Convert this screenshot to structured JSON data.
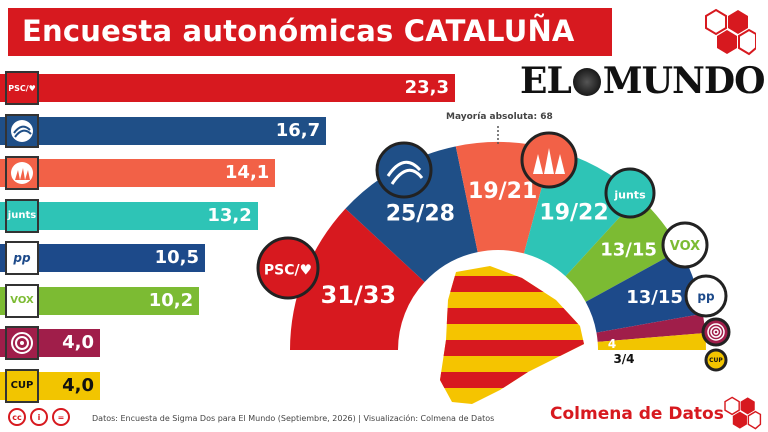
{
  "header": {
    "title": "Encuesta autonómicas CATALUÑA"
  },
  "publisher": {
    "name_left": "EL",
    "name_right": "MUNDO"
  },
  "chart_data": [
    {
      "type": "bar",
      "orientation": "horizontal",
      "categories": [
        "PSC",
        "ERC",
        "Comuns",
        "Junts",
        "PP",
        "VOX",
        "Aliança",
        "CUP"
      ],
      "series_logos": [
        "PSC/♥",
        "erc-logo",
        "comuns-logo",
        "junts",
        "pp",
        "VOX",
        "alianca-logo",
        "CUP"
      ],
      "values": [
        23.3,
        16.7,
        14.1,
        13.2,
        10.5,
        10.2,
        4.0,
        4.0
      ],
      "value_labels": [
        "23,3",
        "16,7",
        "14,1",
        "13,2",
        "10,5",
        "10,2",
        "4,0",
        "4,0"
      ],
      "colors": [
        "#d7191f",
        "#1f4f87",
        "#f26147",
        "#2ec4b6",
        "#1d4a8a",
        "#7cbb33",
        "#a01e4a",
        "#f2c500"
      ]
    },
    {
      "type": "pie",
      "variant": "hemicycle",
      "categories": [
        "PSC",
        "ERC",
        "Comuns",
        "Junts",
        "VOX",
        "PP",
        "Aliança",
        "CUP"
      ],
      "seat_ranges": [
        [
          31,
          33
        ],
        [
          25,
          28
        ],
        [
          19,
          21
        ],
        [
          19,
          22
        ],
        [
          13,
          15
        ],
        [
          13,
          15
        ],
        [
          4,
          4
        ],
        [
          3,
          4
        ]
      ],
      "seat_labels": [
        "31/33",
        "25/28",
        "19/21",
        "19/22",
        "13/15",
        "13/15",
        "4",
        "3/4"
      ],
      "colors": [
        "#d7191f",
        "#1f4f87",
        "#f26147",
        "#2ec4b6",
        "#7cbb33",
        "#1d4a8a",
        "#a01e4a",
        "#f2c500"
      ],
      "majority_label": "Mayoría absoluta: 68"
    }
  ],
  "logos": {
    "psc": "PSC/♥",
    "junts": "junts",
    "pp": "pp",
    "vox": "VOX",
    "cup": "CUP"
  },
  "footer": {
    "source": "Datos: Encuesta de Sigma Dos para El Mundo  (Septiembre, 2026) | Visualización: Colmena de Datos",
    "brand": "Colmena de Datos",
    "license_icons": [
      "cc",
      "i",
      "="
    ]
  }
}
